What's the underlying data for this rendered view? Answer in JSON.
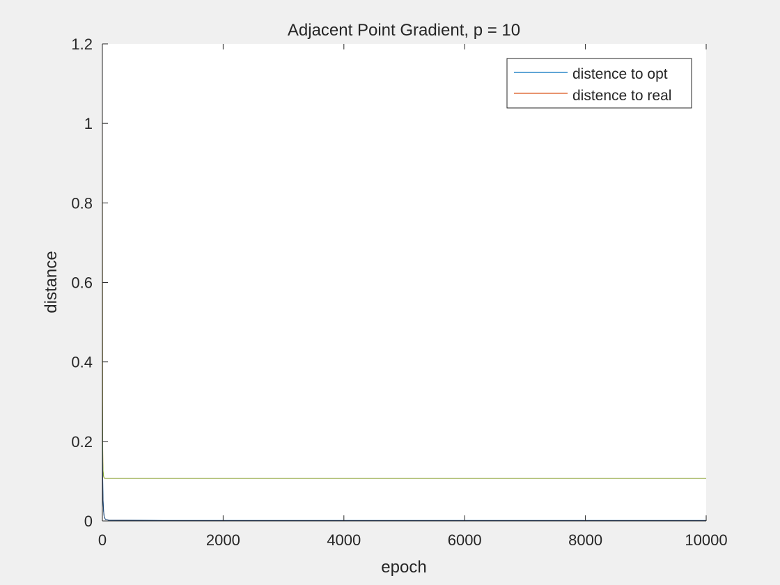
{
  "chart_data": {
    "type": "line",
    "title": "Adjacent Point Gradient, p = 10",
    "xlabel": "epoch",
    "ylabel": "distance",
    "xlim": [
      0,
      10000
    ],
    "ylim": [
      0,
      1.2
    ],
    "xticks": [
      0,
      2000,
      4000,
      6000,
      8000,
      10000
    ],
    "xtick_labels": [
      "0",
      "2000",
      "4000",
      "6000",
      "8000",
      "10000"
    ],
    "yticks": [
      0,
      0.2,
      0.4,
      0.6,
      0.8,
      1.0,
      1.2
    ],
    "ytick_labels": [
      "0",
      "0.2",
      "0.4",
      "0.6",
      "0.8",
      "1",
      "1.2"
    ],
    "grid": false,
    "legend_position": "top-right",
    "series": [
      {
        "name": "distence to opt",
        "color": "#0072bd",
        "x": [
          0,
          1,
          2,
          3,
          5,
          8,
          12,
          20,
          30,
          50,
          100,
          1000,
          10000
        ],
        "y": [
          0.3,
          0.25,
          0.2,
          0.16,
          0.12,
          0.08,
          0.05,
          0.025,
          0.01,
          0.004,
          0.002,
          0.001,
          0.001
        ]
      },
      {
        "name": "distence to real",
        "color": "#d95319",
        "x": [
          0,
          1,
          2,
          3,
          5,
          8,
          12,
          20,
          30,
          50,
          100,
          1000,
          10000
        ],
        "y": [
          1.05,
          0.7,
          0.45,
          0.3,
          0.2,
          0.15,
          0.125,
          0.112,
          0.108,
          0.107,
          0.107,
          0.107,
          0.107
        ]
      }
    ],
    "overlay_line": {
      "color": "#77ac30",
      "x": [
        0,
        1,
        2,
        3,
        5,
        8,
        12,
        20,
        30,
        50,
        100,
        1000,
        10000
      ],
      "y": [
        1.05,
        0.7,
        0.45,
        0.3,
        0.2,
        0.15,
        0.125,
        0.112,
        0.108,
        0.107,
        0.107,
        0.107,
        0.107
      ]
    },
    "overlay_line_2": {
      "color": "#1f3f6b",
      "x": [
        0,
        1,
        2,
        3,
        5,
        8,
        12,
        20,
        30,
        50,
        100,
        1000,
        10000
      ],
      "y": [
        0.3,
        0.25,
        0.2,
        0.16,
        0.12,
        0.08,
        0.05,
        0.025,
        0.01,
        0.004,
        0.002,
        0.001,
        0.001
      ]
    }
  }
}
